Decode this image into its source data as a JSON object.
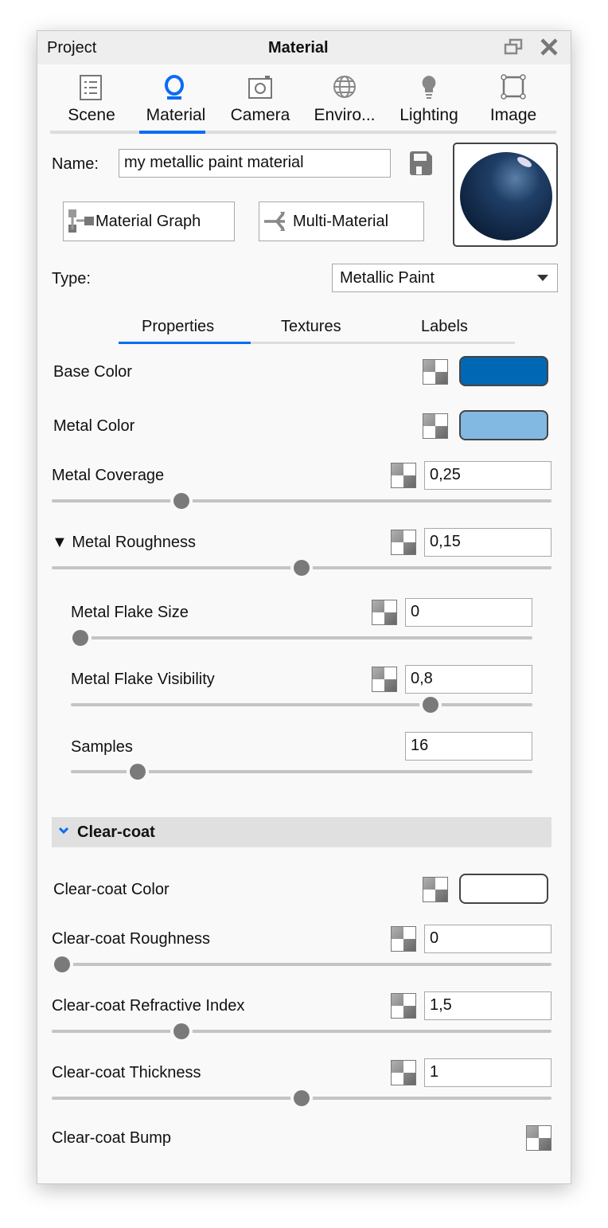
{
  "titlebar": {
    "left": "Project",
    "title": "Material",
    "restore_icon": "restore-window-icon",
    "close_icon": "close-icon"
  },
  "tabs": [
    {
      "label": "Scene",
      "icon": "list-icon"
    },
    {
      "label": "Material",
      "icon": "material-ring-icon",
      "active": true
    },
    {
      "label": "Camera",
      "icon": "camera-icon"
    },
    {
      "label": "Enviro...",
      "icon": "globe-icon"
    },
    {
      "label": "Lighting",
      "icon": "lightbulb-icon"
    },
    {
      "label": "Image",
      "icon": "crop-frame-icon"
    }
  ],
  "accent": "#0a6cf5",
  "name": {
    "label": "Name:",
    "value": "my metallic paint material"
  },
  "buttons": {
    "graph": "Material Graph",
    "multi": "Multi-Material"
  },
  "type": {
    "label": "Type:",
    "value": "Metallic Paint"
  },
  "subtabs": [
    {
      "label": "Properties",
      "active": true
    },
    {
      "label": "Textures"
    },
    {
      "label": "Labels"
    }
  ],
  "props": {
    "base_color": {
      "label": "Base Color",
      "color": "#0067b5"
    },
    "metal_color": {
      "label": "Metal Color",
      "color": "#82b9e3"
    },
    "metal_coverage": {
      "label": "Metal Coverage",
      "value": "0,25",
      "slider": 0.26
    },
    "metal_roughness": {
      "label": "▼ Metal Roughness",
      "value": "0,15",
      "slider": 0.5
    },
    "flake_size": {
      "label": "Metal Flake Size",
      "value": "0",
      "slider": 0.02
    },
    "flake_visibility": {
      "label": "Metal Flake Visibility",
      "value": "0,8",
      "slider": 0.78
    },
    "samples": {
      "label": "Samples",
      "value": "16",
      "slider": 0.145
    }
  },
  "clearcoat": {
    "header": "Clear-coat",
    "color": {
      "label": "Clear-coat Color",
      "color": "#ffffff"
    },
    "roughness": {
      "label": "Clear-coat Roughness",
      "value": "0",
      "slider": 0.02
    },
    "ior": {
      "label": "Clear-coat Refractive Index",
      "value": "1,5",
      "slider": 0.26
    },
    "thickness": {
      "label": "Clear-coat Thickness",
      "value": "1",
      "slider": 0.5
    },
    "bump": {
      "label": "Clear-coat Bump"
    }
  }
}
